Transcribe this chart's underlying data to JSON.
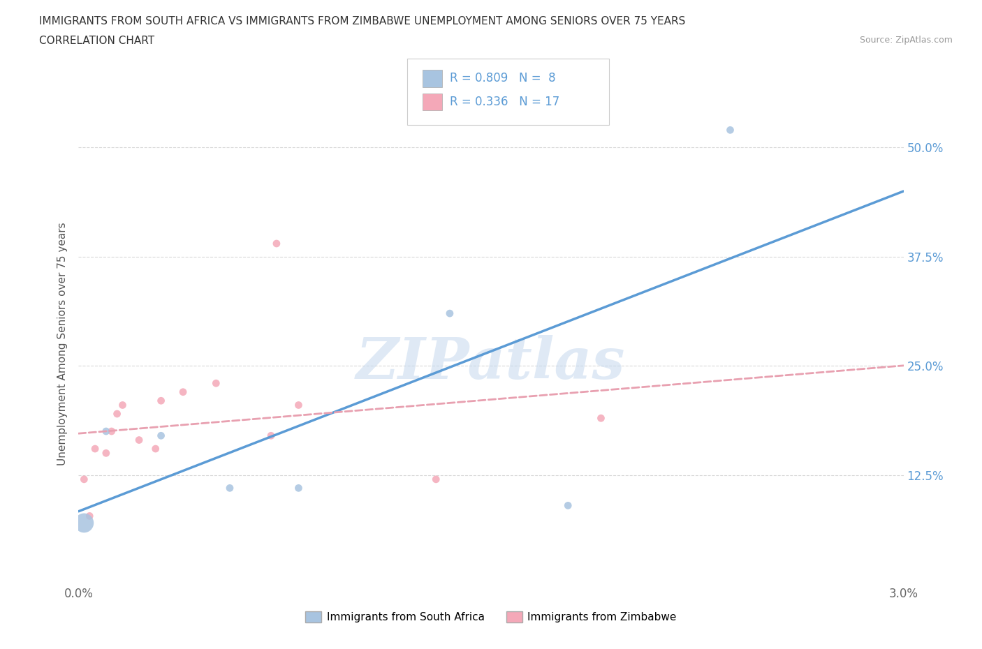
{
  "title_line1": "IMMIGRANTS FROM SOUTH AFRICA VS IMMIGRANTS FROM ZIMBABWE UNEMPLOYMENT AMONG SENIORS OVER 75 YEARS",
  "title_line2": "CORRELATION CHART",
  "source": "Source: ZipAtlas.com",
  "legend_label_sa": "Immigrants from South Africa",
  "legend_label_zim": "Immigrants from Zimbabwe",
  "ylabel": "Unemployment Among Seniors over 75 years",
  "watermark": "ZIPatlas",
  "sa_R": "0.809",
  "sa_N": "8",
  "zim_R": "0.336",
  "zim_N": "17",
  "sa_color": "#a8c4e0",
  "zim_color": "#f4a8b8",
  "sa_line_color": "#5b9bd5",
  "zim_line_color": "#e8a0b0",
  "bg_color": "#ffffff",
  "grid_color": "#d8d8d8",
  "sa_x": [
    0.0002,
    0.001,
    0.003,
    0.0055,
    0.008,
    0.0135,
    0.0178,
    0.0237
  ],
  "sa_y": [
    0.07,
    0.175,
    0.17,
    0.11,
    0.11,
    0.31,
    0.09,
    0.52
  ],
  "sa_sizes": [
    400,
    60,
    60,
    60,
    60,
    60,
    60,
    60
  ],
  "zim_x": [
    0.0002,
    0.0004,
    0.0006,
    0.001,
    0.0012,
    0.0014,
    0.0016,
    0.0022,
    0.0028,
    0.003,
    0.0038,
    0.005,
    0.007,
    0.0072,
    0.008,
    0.013,
    0.019
  ],
  "zim_y": [
    0.12,
    0.078,
    0.155,
    0.15,
    0.175,
    0.195,
    0.205,
    0.165,
    0.155,
    0.21,
    0.22,
    0.23,
    0.17,
    0.39,
    0.205,
    0.12,
    0.19
  ],
  "zim_sizes": [
    60,
    60,
    60,
    60,
    60,
    60,
    60,
    60,
    60,
    60,
    60,
    60,
    60,
    60,
    60,
    60,
    60
  ],
  "xlim": [
    0.0,
    0.03
  ],
  "ylim": [
    0.0,
    0.55
  ],
  "x_ticks": [
    0.0,
    0.005,
    0.01,
    0.015,
    0.02,
    0.025,
    0.03
  ],
  "x_tick_labels": [
    "0.0%",
    "",
    "",
    "",
    "",
    "",
    "3.0%"
  ],
  "y_ticks": [
    0.0,
    0.125,
    0.25,
    0.375,
    0.5
  ],
  "y_right_labels": [
    "",
    "12.5%",
    "25.0%",
    "37.5%",
    "50.0%"
  ],
  "watermark_color": "#c5d8ee",
  "watermark_alpha": 0.55,
  "title_fontsize": 11,
  "tick_fontsize": 12,
  "ylabel_fontsize": 11
}
